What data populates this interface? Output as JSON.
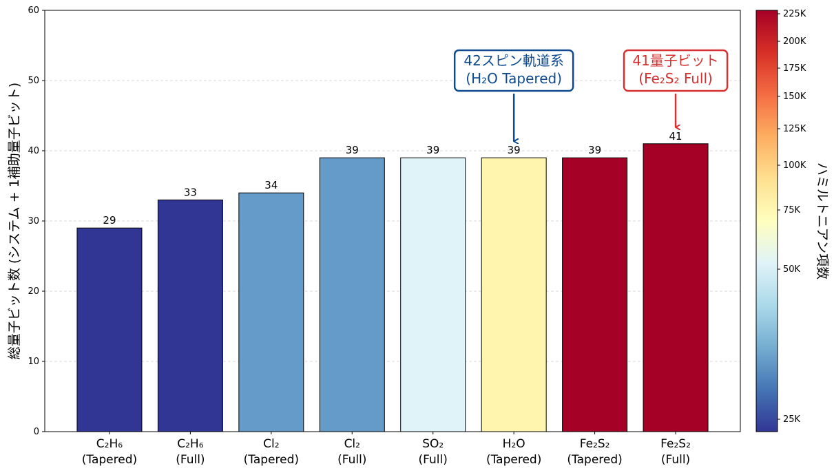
{
  "chart_data": {
    "type": "bar",
    "categories": [
      [
        "C₂H₆",
        "(Tapered)"
      ],
      [
        "C₂H₆",
        "(Full)"
      ],
      [
        "Cl₂",
        "(Tapered)"
      ],
      [
        "Cl₂",
        "(Full)"
      ],
      [
        "SO₂",
        "(Full)"
      ],
      [
        "H₂O",
        "(Tapered)"
      ],
      [
        "Fe₂S₂",
        "(Tapered)"
      ],
      [
        "Fe₂S₂",
        "(Full)"
      ]
    ],
    "values": [
      29,
      33,
      34,
      39,
      39,
      39,
      39,
      41
    ],
    "bar_colors": [
      "#313695",
      "#313695",
      "#659bc8",
      "#659bc8",
      "#e0f3f8",
      "#fff5ae",
      "#a50026",
      "#a50026"
    ],
    "data_labels": [
      "29",
      "33",
      "34",
      "39",
      "39",
      "39",
      "39",
      "41"
    ],
    "xlabel": "",
    "ylabel": "総量子ビット数 (システム + 1補助量子ビット)",
    "ylim": [
      0,
      60
    ],
    "yticks": [
      "0",
      "10",
      "20",
      "30",
      "40",
      "50",
      "60"
    ],
    "grid": "horizontal dashed",
    "colorbar": {
      "label": "ハミルトニアン項数",
      "colormap": "RdYlBu_r",
      "ticks": [
        "25K",
        "50K",
        "75K",
        "100K",
        "125K",
        "150K",
        "175K",
        "200K",
        "225K"
      ]
    },
    "annotations": [
      {
        "line1": "42スピン軌道系",
        "line2": "(H₂O Tapered)",
        "target_index": 5,
        "color": "#0d4a8f"
      },
      {
        "line1": "41量子ビット",
        "line2": "(Fe₂S₂ Full)",
        "target_index": 7,
        "color": "#d62f2f"
      }
    ]
  }
}
